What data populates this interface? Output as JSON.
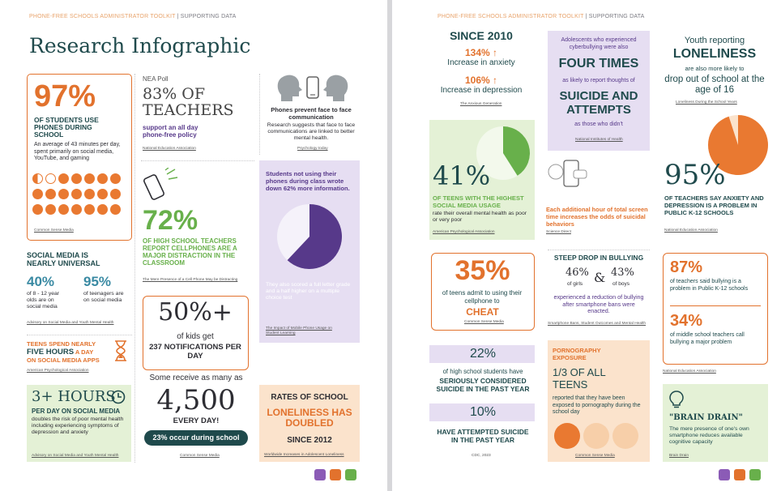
{
  "header": {
    "brand": "PHONE-FREE SCHOOLS ADMINISTRATOR TOOLKIT",
    "divider": "|",
    "section": "SUPPORTING DATA"
  },
  "left": {
    "title": "Research Infographic",
    "stat97": {
      "value": "97%",
      "label": "OF STUDENTS USE PHONES DURING SCHOOL",
      "desc": "An average of 43 minutes per day, spent primarily on social media, YouTube, and gaming",
      "source": "Common Sense Media"
    },
    "nea": {
      "poll": "NEA Poll",
      "value": "83% OF",
      "word": "TEACHERS",
      "desc": "support an all day phone-free policy",
      "source": "National Education Association"
    },
    "faces": {
      "title": "Phones prevent face to face communication",
      "desc": "Research suggests that face to face communications are linked to better mental health.",
      "source": "Psychology today",
      "icon_left": "head-silhouette-icon",
      "icon_mid": "phone-icon",
      "icon_right": "head-silhouette-icon"
    },
    "social": {
      "title": "SOCIAL MEDIA IS NEARLY UNIVERSAL",
      "pct1": "40%",
      "desc1": "of 8 - 12 year olds are on social media",
      "pct2": "95%",
      "desc2": "of teenagers are on social media",
      "source": "Advisory on Social Media and Youth Mental Health"
    },
    "stat72": {
      "value": "72%",
      "label": "OF HIGH SCHOOL TEACHERS REPORT CELLPHONES ARE A MAJOR DISTRACTION IN THE CLASSROOM",
      "source": "The Mere Presence of a Cell Phone May be Distracting",
      "icon": "buzzing-phone-icon"
    },
    "notes": {
      "title": "Students not using their phones during class wrote down 62% more information.",
      "desc": "They also scored a full letter grade and a half higher on a multiple choice test",
      "source": "The Impact of Mobile Phone Usage on Student Learning",
      "pie_fraction": 0.62
    },
    "hours": {
      "line1": "TEENS SPEND NEARLY",
      "line2a": "FIVE HOURS",
      "line2b": " A DAY",
      "line3": "ON SOCIAL MEDIA APPS",
      "source": "American Psychological Association",
      "icon": "hourglass-icon"
    },
    "notif": {
      "value": "50%+",
      "line1": "of kids get",
      "line2": "237 NOTIFICATIONS PER DAY",
      "receive": "Some receive as many as",
      "big": "4,500",
      "everyday": "EVERY DAY!",
      "pill": "23% occur during school",
      "source": "Common Sense Media"
    },
    "three": {
      "value": "3+ HOURS",
      "label": "PER DAY ON SOCIAL MEDIA",
      "desc": "doubles the risk of poor mental health including experiencing symptoms of depression and anxiety",
      "source": "Advisory on Social Media and Youth Mental Health",
      "icon": "clock-icon"
    },
    "lonely": {
      "line1": "RATES OF SCHOOL",
      "line2": "LONELINESS HAS DOUBLED",
      "line3": "SINCE 2012",
      "source": "Worldwide Increases in Adolescent Loneliness"
    },
    "logos": [
      "person-icon",
      "group-icon",
      "teacher-icon"
    ]
  },
  "right": {
    "since": {
      "title": "SINCE 2010",
      "pct1": "134%",
      "label1": "Increase in anxiety",
      "pct2": "106%",
      "label2": "Increase in depression",
      "source": "The Anxious Generation"
    },
    "cyber": {
      "intro": "Adolescents who experienced cyberbullying were also",
      "big": "FOUR TIMES",
      "mid": "as likely to report thoughts of",
      "big2": "SUICIDE AND ATTEMPTS",
      "end": "as those who didn't",
      "source": "National Institutes of Health"
    },
    "lonely16": {
      "line1": "Youth reporting",
      "big": "LONELINESS",
      "line2": "are also more likely to",
      "line3": "drop out of school at the age of 16",
      "source": "Loneliness During the School Years"
    },
    "stat41": {
      "value": "41%",
      "label": "OF TEENS WITH THE HIGHEST SOCIAL MEDIA USAGE",
      "desc": "rate their overall mental health as poor or very poor",
      "source": "American Psychological Association",
      "pie_fraction": 0.41
    },
    "screen": {
      "desc": "Each additional hour of total screen time increases the odds of suicidal behaviors",
      "source": "Science Direct",
      "icon": "chat-phone-icon"
    },
    "stat95": {
      "value": "95%",
      "label": "OF TEACHERS SAY ANXIETY AND DEPRESSION IS A PROBLEM IN PUBLIC K-12 SCHOOLS",
      "source": "National Education Association",
      "pie_fraction": 0.95
    },
    "cheat": {
      "value": "35%",
      "desc": "of teens admit to using their cellphone to",
      "word": "CHEAT",
      "source": "Common Sense Media"
    },
    "bully": {
      "title": "STEEP DROP IN BULLYING",
      "pct1": "46%",
      "who1": "of girls",
      "amp": "&",
      "pct2": "43%",
      "who2": "of boys",
      "desc": "experienced a reduction of bullying after smartphone bans were enacted.",
      "source": "Smartphone Bans, Student Outcomes and Mental Health"
    },
    "bully87": {
      "pct1": "87%",
      "desc1": "of teachers said bullying is a problem in Public K-12 schools",
      "pct2": "34%",
      "desc2": "of middle school teachers call bullying a major problem",
      "source": "National Education Association"
    },
    "suicide": {
      "pct1": "22%",
      "line1": "of high school students have",
      "line2": "SERIOUSLY CONSIDERED SUICIDE IN THE PAST YEAR",
      "pct2": "10%",
      "line3": "HAVE ATTEMPTED SUICIDE IN THE PAST YEAR",
      "source": "CDC, 2023"
    },
    "porn": {
      "title": "PORNOGRAPHY EXPOSURE",
      "big": "1/3 OF ALL TEENS",
      "desc": "reported that they have been exposed to pornography during the school day",
      "source": "Common Sense Media",
      "filled": 1,
      "total": 3
    },
    "brain": {
      "title": "\"BRAIN DRAIN\"",
      "desc": "The mere presence of one's own smartphone reduces available cognitive capacity",
      "source": "Brain Drain",
      "icon": "lightbulb-icon"
    },
    "logos": [
      "person-icon",
      "group-icon",
      "teacher-icon"
    ]
  },
  "colors": {
    "orange": "#e2722d",
    "green": "#68b04b",
    "purple": "#57398a",
    "dark_teal": "#1f4a4c",
    "lavender": "#e6def2",
    "light_green": "#e4f1d6",
    "peach": "#fbe3cc"
  }
}
